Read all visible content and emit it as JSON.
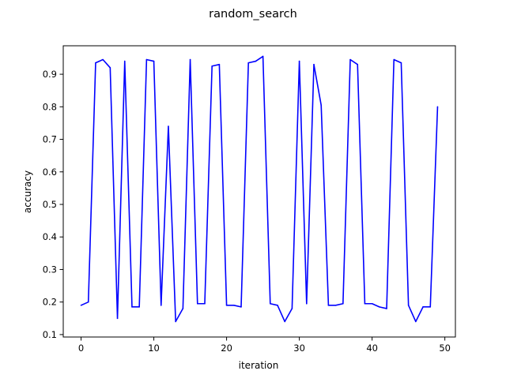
{
  "chart_data": {
    "type": "line",
    "title": "random_search",
    "xlabel": "iteration",
    "ylabel": "accuracy",
    "xlim": [
      -2.45,
      51.45
    ],
    "ylim": [
      0.0925,
      0.9875
    ],
    "xticks": [
      0,
      10,
      20,
      30,
      40,
      50
    ],
    "yticks": [
      0.1,
      0.2,
      0.3,
      0.4,
      0.5,
      0.6,
      0.7,
      0.8,
      0.9
    ],
    "xtick_labels": [
      "0",
      "10",
      "20",
      "30",
      "40",
      "50"
    ],
    "ytick_labels": [
      "0.1",
      "0.2",
      "0.3",
      "0.4",
      "0.5",
      "0.6",
      "0.7",
      "0.8",
      "0.9"
    ],
    "grid": false,
    "series": [
      {
        "color": "#0000ff",
        "x": [
          0,
          1,
          2,
          3,
          4,
          5,
          6,
          7,
          8,
          9,
          10,
          11,
          12,
          13,
          14,
          15,
          16,
          17,
          18,
          19,
          20,
          21,
          22,
          23,
          24,
          25,
          26,
          27,
          28,
          29,
          30,
          31,
          32,
          33,
          34,
          35,
          36,
          37,
          38,
          39,
          40,
          41,
          42,
          43,
          44,
          45,
          46,
          47,
          48,
          49
        ],
        "y": [
          0.19,
          0.2,
          0.935,
          0.945,
          0.92,
          0.15,
          0.94,
          0.185,
          0.185,
          0.945,
          0.94,
          0.19,
          0.74,
          0.14,
          0.18,
          0.945,
          0.195,
          0.195,
          0.925,
          0.93,
          0.19,
          0.19,
          0.185,
          0.935,
          0.94,
          0.955,
          0.195,
          0.19,
          0.14,
          0.18,
          0.94,
          0.195,
          0.93,
          0.805,
          0.19,
          0.19,
          0.195,
          0.945,
          0.93,
          0.195,
          0.195,
          0.185,
          0.18,
          0.945,
          0.935,
          0.19,
          0.14,
          0.185,
          0.185,
          0.8
        ]
      }
    ]
  }
}
